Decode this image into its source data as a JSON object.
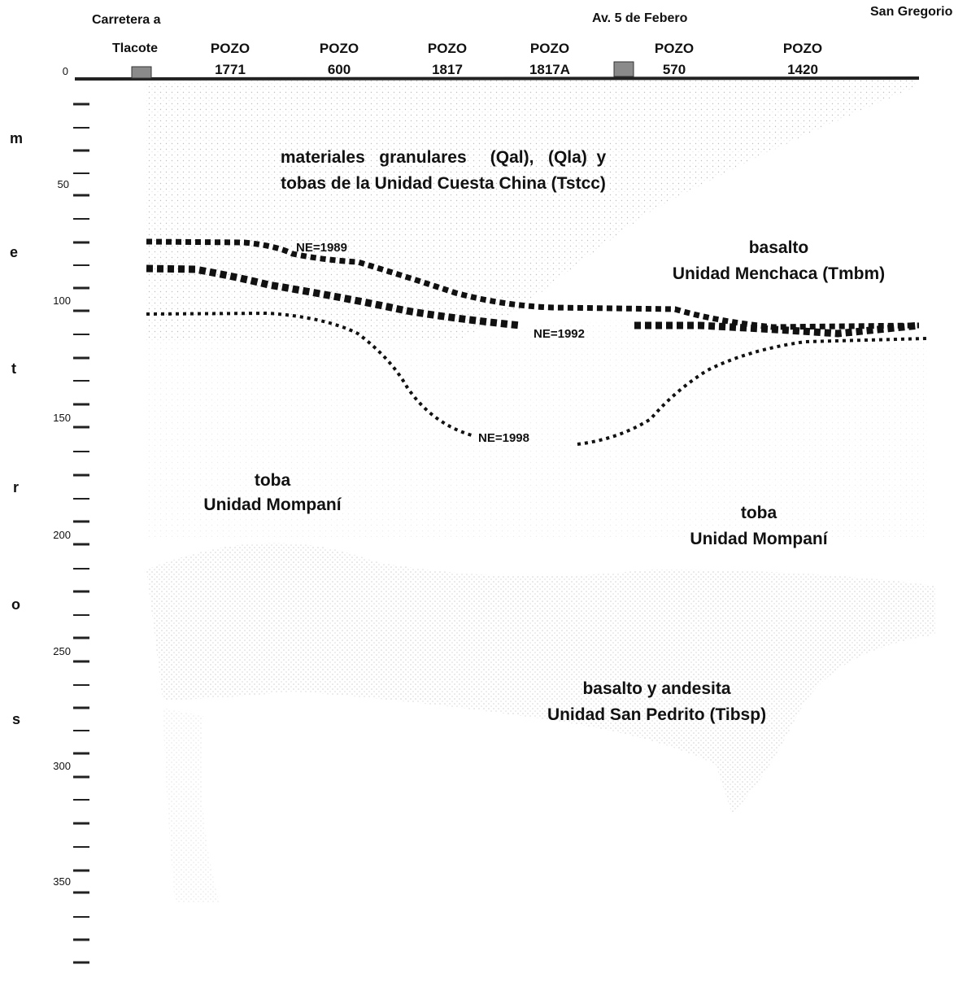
{
  "top_labels": {
    "road_line1": "Carretera   a",
    "road_line2": "Tlacote",
    "avenue": "Av. 5 de Febero",
    "town": "San Gregorio"
  },
  "wells": [
    {
      "title": "POZO",
      "id": "1771"
    },
    {
      "title": "POZO",
      "id": "600"
    },
    {
      "title": "POZO",
      "id": "1817"
    },
    {
      "title": "POZO",
      "id": "1817A"
    },
    {
      "title": "POZO",
      "id": "570"
    },
    {
      "title": "POZO",
      "id": "1420"
    }
  ],
  "depth_axis": {
    "letters": [
      "m",
      "e",
      "t",
      "r",
      "o",
      "s"
    ],
    "ticks": [
      "0",
      "50",
      "100",
      "150",
      "200",
      "250",
      "300",
      "350"
    ]
  },
  "units": {
    "granular_line1": "materiales   granulares     (Qal),   (Qla)  y",
    "granular_line2": "tobas de la Unidad Cuesta China (Tstcc)",
    "menchaca_line1": "basalto",
    "menchaca_line2": "Unidad Menchaca (Tmbm)",
    "mompani_left_line1": "toba",
    "mompani_left_line2": "Unidad Mompaní",
    "mompani_right_line1": "toba",
    "mompani_right_line2": "Unidad Mompaní",
    "sanpedrito_line1": "basalto y andesita",
    "sanpedrito_line2": "Unidad San Pedrito (Tibsp)"
  },
  "water_levels": [
    "NE=1989",
    "NE=1992",
    "NE=1998"
  ]
}
